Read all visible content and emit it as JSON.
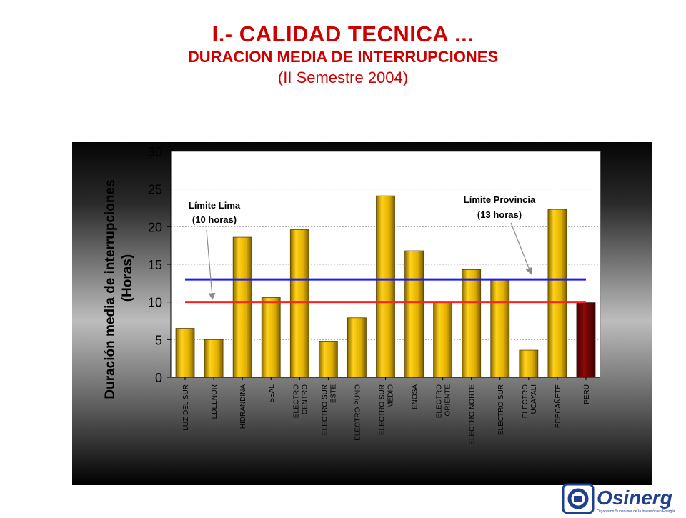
{
  "header": {
    "title": "I.- CALIDAD TECNICA ...",
    "subtitle": "DURACION MEDIA DE INTERRUPCIONES",
    "period": "(II Semestre 2004)"
  },
  "chart_data": {
    "type": "bar",
    "ylabel_line1": "Duración media de interrupciones",
    "ylabel_line2": "(Horas)",
    "ylim": [
      0,
      30
    ],
    "yticks": [
      0,
      5,
      10,
      15,
      20,
      25,
      30
    ],
    "grid": true,
    "categories": [
      [
        "LUZ DEL SUR"
      ],
      [
        "EDELNOR"
      ],
      [
        "HIDRANDINA"
      ],
      [
        "SEAL"
      ],
      [
        "ELECTRO",
        "CENTRO"
      ],
      [
        "ELECTRO SUR",
        "ESTE"
      ],
      [
        "ELECTRO PUNO"
      ],
      [
        "ELECTRO SUR",
        "MEDIO"
      ],
      [
        "ENOSA"
      ],
      [
        "ELECTRO",
        "ORIENTE"
      ],
      [
        "ELECTRO NORTE"
      ],
      [
        "ELECTRO SUR"
      ],
      [
        "ELECTRO",
        "UCAYALI"
      ],
      [
        "EDECAÑETE"
      ],
      [
        "PERÚ"
      ]
    ],
    "values": [
      6.5,
      5.0,
      18.6,
      10.6,
      19.6,
      4.8,
      7.9,
      24.1,
      16.8,
      10.0,
      14.3,
      13.0,
      3.6,
      22.3,
      9.9
    ],
    "highlight_index": 14,
    "reference_lines": [
      {
        "value": 13,
        "label_line1": "Límite Provincia",
        "label_line2": "(13 horas)",
        "color": "#1a1aff"
      },
      {
        "value": 10,
        "label_line1": "Límite Lima",
        "label_line2": "(10 horas)",
        "color": "#ff2020"
      }
    ]
  },
  "colors": {
    "title": "#cc0000",
    "bar": "#d6a800",
    "bar_highlight": "#7a0000",
    "lima_line": "#ff2020",
    "provincia_line": "#1a1aff"
  },
  "logo": {
    "name": "Osinerg",
    "tagline": "Organismo Supervisor de la Inversión en Energía"
  }
}
